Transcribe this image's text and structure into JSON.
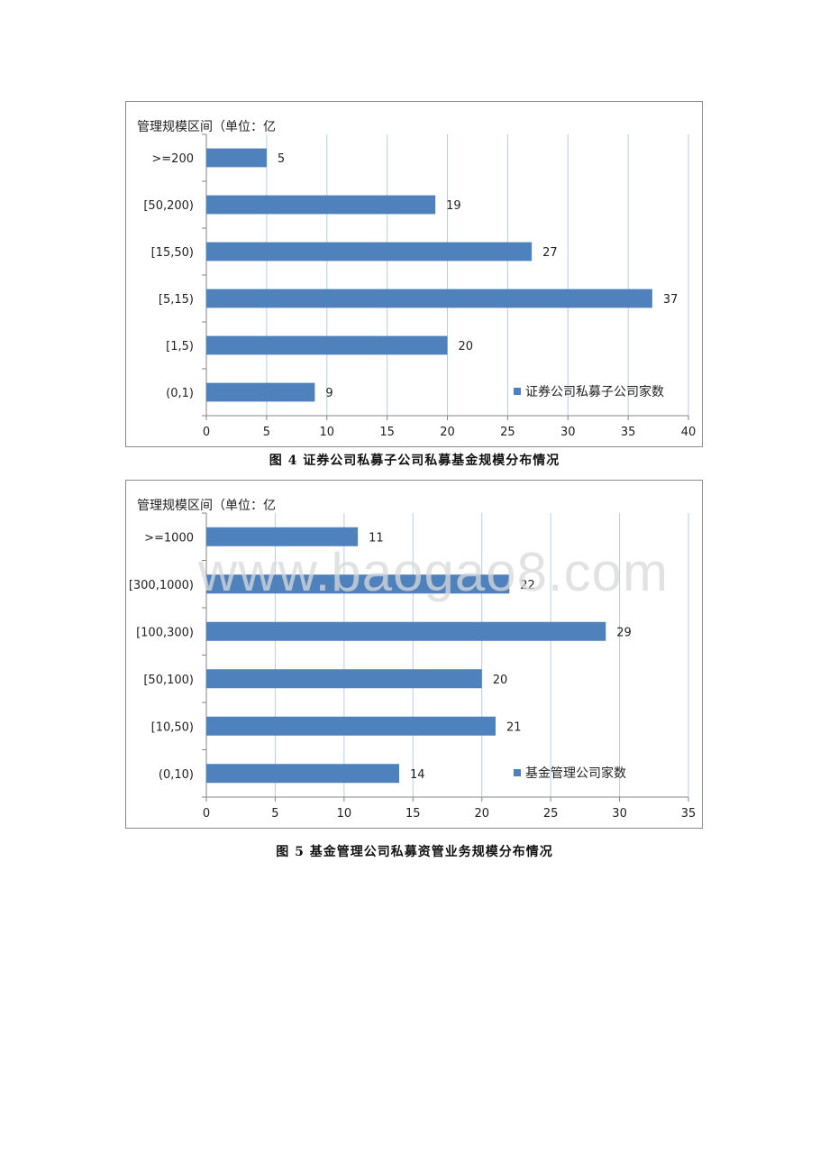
{
  "chart_data": [
    {
      "type": "bar",
      "orientation": "horizontal",
      "title": "管理规模区间（单位：亿",
      "categories": [
        ">=200",
        "[50,200)",
        "[15,50)",
        "[5,15)",
        "[1,5)",
        "(0,1)"
      ],
      "series": [
        {
          "name": "证券公司私募子公司家数",
          "values": [
            5,
            19,
            27,
            37,
            20,
            9
          ]
        }
      ],
      "xlim": [
        0,
        40
      ],
      "xticks": [
        0,
        5,
        10,
        15,
        20,
        25,
        30,
        35,
        40
      ],
      "grid": true,
      "legend": "bottom-right",
      "color": "#4f81bd"
    },
    {
      "type": "bar",
      "orientation": "horizontal",
      "title": "管理规模区间（单位：亿",
      "categories": [
        ">=1000",
        "[300,1000)",
        "[100,300)",
        "[50,100)",
        "[10,50)",
        "(0,10)"
      ],
      "series": [
        {
          "name": "基金管理公司家数",
          "values": [
            11,
            22,
            29,
            20,
            21,
            14
          ]
        }
      ],
      "xlim": [
        0,
        35
      ],
      "xticks": [
        0,
        5,
        10,
        15,
        20,
        25,
        30,
        35
      ],
      "grid": true,
      "legend": "bottom-right",
      "color": "#4f81bd"
    }
  ],
  "captions": {
    "fig4": "图 4  证券公司私募子公司私募基金规模分布情况",
    "fig5": "图 5  基金管理公司私募资管业务规模分布情况"
  },
  "watermark": "www.baogao8.com",
  "colors": {
    "bar": "#4f81bd",
    "grid": "#b9cde5",
    "axis": "#868686"
  }
}
